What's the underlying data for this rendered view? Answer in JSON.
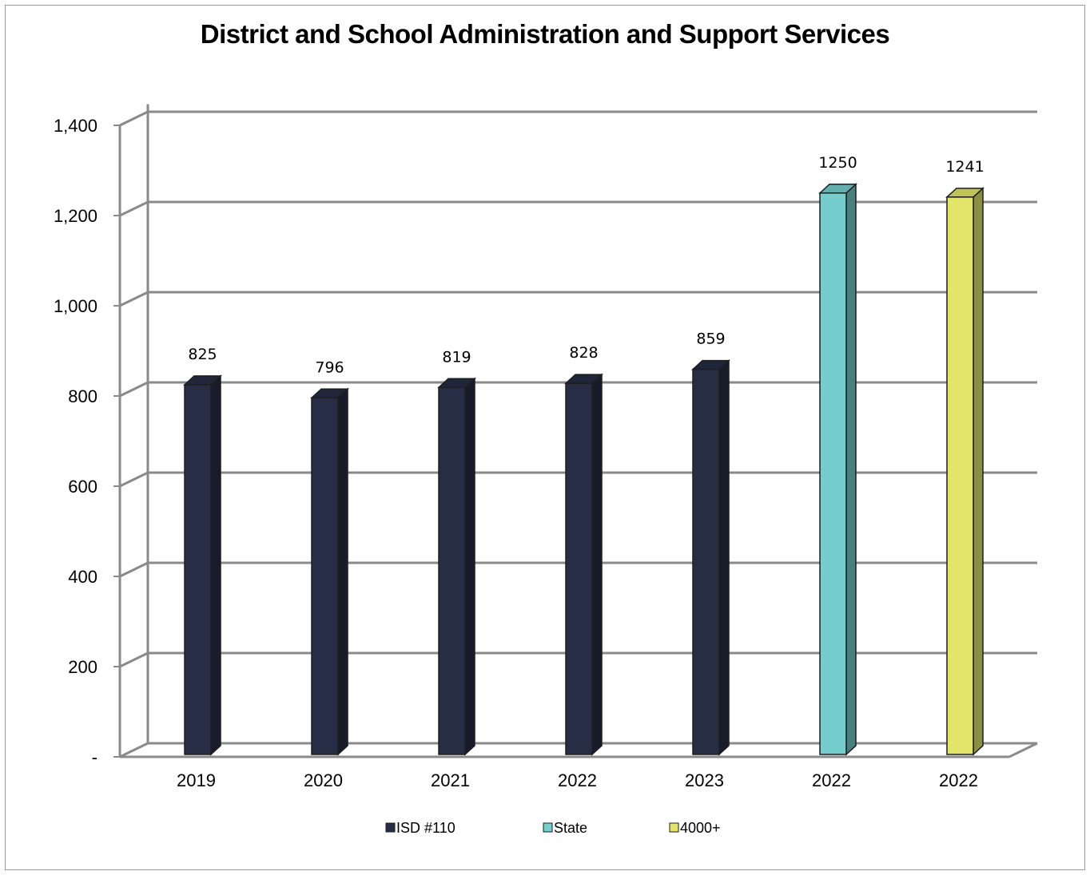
{
  "chart_data": {
    "type": "bar",
    "title": "District and School Administration and Support Services",
    "xlabel": "",
    "ylabel": "",
    "categories": [
      "2019",
      "2020",
      "2021",
      "2022",
      "2023",
      "2022",
      "2022"
    ],
    "series": [
      {
        "name": "ISD #110",
        "color": "#262d44",
        "values": [
          825,
          796,
          819,
          828,
          859,
          null,
          null
        ]
      },
      {
        "name": "State",
        "color": "#76cdcd",
        "values": [
          null,
          null,
          null,
          null,
          null,
          1250,
          null
        ]
      },
      {
        "name": "4000+",
        "color": "#e2e56a",
        "values": [
          null,
          null,
          null,
          null,
          null,
          null,
          1241
        ]
      }
    ],
    "data_labels": [
      "825",
      "796",
      "819",
      "828",
      "859",
      "1250",
      "1241"
    ],
    "ylim": [
      0,
      1400
    ],
    "yticks": [
      0,
      200,
      400,
      600,
      800,
      1000,
      1200,
      1400
    ],
    "ytick_labels": [
      "-",
      "200",
      "400",
      "600",
      "800",
      "1,000",
      "1,200",
      "1,400"
    ],
    "grid": true,
    "legend_position": "bottom"
  }
}
